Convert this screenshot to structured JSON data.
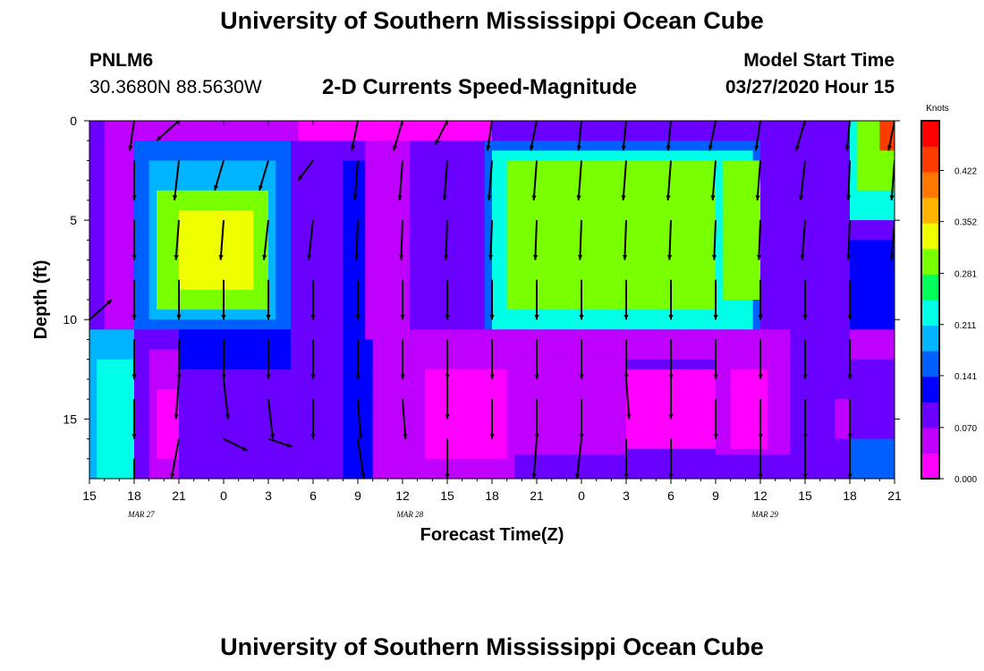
{
  "header": {
    "title_top": "University of Southern Mississippi Ocean Cube",
    "station": "PNLM6",
    "coords": "30.3680N 88.5630W",
    "plot_title": "2-D Currents Speed-Magnitude",
    "model_start_label": "Model Start Time",
    "model_start_value": "03/27/2020 Hour 15"
  },
  "footer": {
    "title_bottom": "University of Southern Mississippi Ocean Cube"
  },
  "chart_data": {
    "type": "heatmap",
    "title": "2-D Currents Speed-Magnitude",
    "xlabel": "Forecast Time(Z)",
    "ylabel": "Depth (ft)",
    "x_tick_labels": [
      "15",
      "18",
      "21",
      "0",
      "3",
      "6",
      "9",
      "12",
      "15",
      "18",
      "21",
      "0",
      "3",
      "6",
      "9",
      "12",
      "15",
      "18",
      "21"
    ],
    "date_labels": [
      {
        "text": "MAR 27",
        "at_hour": 21
      },
      {
        "text": "MAR 28",
        "at_hour": 48
      },
      {
        "text": "MAR 29",
        "at_hour": 93
      }
    ],
    "x_range_hours": [
      0,
      54
    ],
    "y_ticks": [
      0,
      5,
      10,
      15
    ],
    "ylim": [
      0,
      18
    ],
    "colorbar": {
      "unit": "Knots",
      "tick_values": [
        "0.000",
        "0.070",
        "0.141",
        "0.211",
        "0.281",
        "0.352",
        "0.422"
      ],
      "range": [
        0,
        0.49
      ],
      "colors": [
        "#ff00ff",
        "#c000ff",
        "#6a00ff",
        "#0000ff",
        "#0060ff",
        "#00b4ff",
        "#00ffe6",
        "#00ff5a",
        "#78ff00",
        "#f0ff00",
        "#ffb400",
        "#ff7800",
        "#ff3c00",
        "#ff0000"
      ]
    },
    "regions": [
      {
        "t0": 0,
        "t1": 54,
        "d0": 0,
        "d1": 18,
        "v": 0.09
      },
      {
        "t0": 1,
        "t1": 14,
        "d0": 0,
        "d1": 1,
        "v": 0.06
      },
      {
        "t0": 14,
        "t1": 27,
        "d0": 0,
        "d1": 1,
        "v": 0.03
      },
      {
        "t0": 27,
        "t1": 52,
        "d0": 0,
        "d1": 1,
        "v": 0.07
      },
      {
        "t0": 0,
        "t1": 1,
        "d0": 0,
        "d1": 10,
        "v": 0.08
      },
      {
        "t0": 1,
        "t1": 3,
        "d0": 1,
        "d1": 10.5,
        "v": 0.06
      },
      {
        "t0": 3,
        "t1": 13.5,
        "d0": 1,
        "d1": 10.5,
        "v": 0.15
      },
      {
        "t0": 4,
        "t1": 12.5,
        "d0": 2,
        "d1": 10,
        "v": 0.2
      },
      {
        "t0": 4.5,
        "t1": 12,
        "d0": 3.5,
        "d1": 9.5,
        "v": 0.29
      },
      {
        "t0": 6,
        "t1": 11,
        "d0": 4.5,
        "d1": 8.5,
        "v": 0.32
      },
      {
        "t0": 13.5,
        "t1": 17,
        "d0": 1,
        "d1": 18,
        "v": 0.08
      },
      {
        "t0": 17,
        "t1": 18.5,
        "d0": 2,
        "d1": 18,
        "v": 0.12
      },
      {
        "t0": 18.5,
        "t1": 21.5,
        "d0": 1,
        "d1": 18,
        "v": 0.06
      },
      {
        "t0": 21.5,
        "t1": 23.5,
        "d0": 2,
        "d1": 12,
        "v": 0.1
      },
      {
        "t0": 23.5,
        "t1": 26,
        "d0": 1,
        "d1": 11,
        "v": 0.08
      },
      {
        "t0": 26.5,
        "t1": 45,
        "d0": 1,
        "d1": 11,
        "v": 0.14
      },
      {
        "t0": 27,
        "t1": 44.5,
        "d0": 1.5,
        "d1": 10.5,
        "v": 0.21
      },
      {
        "t0": 28,
        "t1": 42,
        "d0": 2,
        "d1": 9.5,
        "v": 0.28
      },
      {
        "t0": 29,
        "t1": 40.5,
        "d0": 3,
        "d1": 8.5,
        "v": 0.31
      },
      {
        "t0": 42.5,
        "t1": 45,
        "d0": 2,
        "d1": 9,
        "v": 0.29
      },
      {
        "t0": 45,
        "t1": 48,
        "d0": 1,
        "d1": 11,
        "v": 0.08
      },
      {
        "t0": 48,
        "t1": 51,
        "d0": 2,
        "d1": 18,
        "v": 0.07
      },
      {
        "t0": 51,
        "t1": 54,
        "d0": 0,
        "d1": 5,
        "v": 0.22
      },
      {
        "t0": 51.5,
        "t1": 54,
        "d0": 0,
        "d1": 3.5,
        "v": 0.3
      },
      {
        "t0": 53,
        "t1": 54,
        "d0": 0,
        "d1": 1.5,
        "v": 0.42
      },
      {
        "t0": 51,
        "t1": 54,
        "d0": 6,
        "d1": 11,
        "v": 0.11
      },
      {
        "t0": 0,
        "t1": 3,
        "d0": 10.5,
        "d1": 18,
        "v": 0.19
      },
      {
        "t0": 0.5,
        "t1": 3,
        "d0": 12,
        "d1": 18,
        "v": 0.23
      },
      {
        "t0": 3,
        "t1": 4,
        "d0": 11,
        "d1": 18,
        "v": 0.07
      },
      {
        "t0": 4,
        "t1": 6,
        "d0": 11.5,
        "d1": 18,
        "v": 0.05
      },
      {
        "t0": 4.5,
        "t1": 6,
        "d0": 13.5,
        "d1": 17,
        "v": 0.01
      },
      {
        "t0": 6,
        "t1": 13.5,
        "d0": 11,
        "d1": 18,
        "v": 0.09
      },
      {
        "t0": 6,
        "t1": 13.5,
        "d0": 10.5,
        "d1": 12.5,
        "v": 0.13
      },
      {
        "t0": 17,
        "t1": 19,
        "d0": 11,
        "d1": 18,
        "v": 0.12
      },
      {
        "t0": 21.5,
        "t1": 28.5,
        "d0": 10.5,
        "d1": 18,
        "v": 0.05
      },
      {
        "t0": 22.5,
        "t1": 28,
        "d0": 12.5,
        "d1": 17,
        "v": 0.02
      },
      {
        "t0": 28.5,
        "t1": 54,
        "d0": 10.5,
        "d1": 12,
        "v": 0.06
      },
      {
        "t0": 28.5,
        "t1": 36,
        "d0": 12,
        "d1": 18,
        "v": 0.06
      },
      {
        "t0": 36,
        "t1": 42,
        "d0": 12.5,
        "d1": 16.5,
        "v": 0.02
      },
      {
        "t0": 42,
        "t1": 47,
        "d0": 11.5,
        "d1": 18,
        "v": 0.05
      },
      {
        "t0": 43,
        "t1": 45.5,
        "d0": 12.5,
        "d1": 16.5,
        "v": 0.01
      },
      {
        "t0": 47,
        "t1": 48.5,
        "d0": 10.5,
        "d1": 18,
        "v": 0.07
      },
      {
        "t0": 48,
        "t1": 51,
        "d0": 10,
        "d1": 18,
        "v": 0.1
      },
      {
        "t0": 50,
        "t1": 51,
        "d0": 14,
        "d1": 16,
        "v": 0.06
      },
      {
        "t0": 28.5,
        "t1": 51,
        "d0": 16.8,
        "d1": 18,
        "v": 0.1
      },
      {
        "t0": 51,
        "t1": 54,
        "d0": 16,
        "d1": 18,
        "v": 0.14
      }
    ],
    "arrows": [
      {
        "t": 0,
        "d": 10,
        "dt": 1.5,
        "dd": -1
      },
      {
        "t": 3,
        "d": 0,
        "dt": -0.3,
        "dd": 1.5
      },
      {
        "t": 3,
        "d": 2,
        "dt": 0,
        "dd": 2
      },
      {
        "t": 3,
        "d": 5,
        "dt": 0,
        "dd": 2
      },
      {
        "t": 3,
        "d": 8,
        "dt": 0,
        "dd": 2
      },
      {
        "t": 3,
        "d": 11,
        "dt": 0,
        "dd": 2
      },
      {
        "t": 3,
        "d": 14,
        "dt": 0,
        "dd": 2
      },
      {
        "t": 3,
        "d": 17,
        "dt": 0,
        "dd": 2
      },
      {
        "t": 6,
        "d": 0,
        "dt": -1.5,
        "dd": 1
      },
      {
        "t": 6,
        "d": 2,
        "dt": -0.3,
        "dd": 2
      },
      {
        "t": 6,
        "d": 5,
        "dt": -0.2,
        "dd": 2
      },
      {
        "t": 6,
        "d": 8,
        "dt": 0,
        "dd": 2
      },
      {
        "t": 6,
        "d": 11,
        "dt": 0,
        "dd": 2
      },
      {
        "t": 6,
        "d": 13,
        "dt": -0.2,
        "dd": 2
      },
      {
        "t": 6,
        "d": 16,
        "dt": -0.5,
        "dd": 2
      },
      {
        "t": 9,
        "d": 2,
        "dt": -0.6,
        "dd": 1.5
      },
      {
        "t": 9,
        "d": 5,
        "dt": -0.2,
        "dd": 2
      },
      {
        "t": 9,
        "d": 8,
        "dt": 0,
        "dd": 2
      },
      {
        "t": 9,
        "d": 11,
        "dt": 0,
        "dd": 2
      },
      {
        "t": 9,
        "d": 13,
        "dt": 0.3,
        "dd": 2
      },
      {
        "t": 9,
        "d": 16,
        "dt": 1.6,
        "dd": 0.6
      },
      {
        "t": 12,
        "d": 2,
        "dt": -0.6,
        "dd": 1.5
      },
      {
        "t": 12,
        "d": 5,
        "dt": -0.3,
        "dd": 2
      },
      {
        "t": 12,
        "d": 8,
        "dt": 0,
        "dd": 2
      },
      {
        "t": 12,
        "d": 11,
        "dt": 0,
        "dd": 2
      },
      {
        "t": 12,
        "d": 14,
        "dt": 0.3,
        "dd": 2
      },
      {
        "t": 12,
        "d": 16,
        "dt": 1.6,
        "dd": 0.4
      },
      {
        "t": 15,
        "d": 2,
        "dt": -1,
        "dd": 1
      },
      {
        "t": 15,
        "d": 5,
        "dt": -0.3,
        "dd": 2
      },
      {
        "t": 15,
        "d": 8,
        "dt": 0,
        "dd": 2
      },
      {
        "t": 15,
        "d": 11,
        "dt": 0,
        "dd": 2
      },
      {
        "t": 15,
        "d": 14,
        "dt": 0,
        "dd": 2
      },
      {
        "t": 18,
        "d": 0,
        "dt": -0.4,
        "dd": 1.5
      },
      {
        "t": 18,
        "d": 2,
        "dt": -0.2,
        "dd": 2
      },
      {
        "t": 18,
        "d": 5,
        "dt": -0.1,
        "dd": 2
      },
      {
        "t": 18,
        "d": 8,
        "dt": 0,
        "dd": 2
      },
      {
        "t": 18,
        "d": 11,
        "dt": 0,
        "dd": 2
      },
      {
        "t": 18,
        "d": 14,
        "dt": 0.2,
        "dd": 2
      },
      {
        "t": 18,
        "d": 16,
        "dt": 0.4,
        "dd": 2
      },
      {
        "t": 21,
        "d": 0,
        "dt": -0.6,
        "dd": 1.5
      },
      {
        "t": 21,
        "d": 2,
        "dt": -0.2,
        "dd": 2
      },
      {
        "t": 21,
        "d": 5,
        "dt": -0.1,
        "dd": 2
      },
      {
        "t": 21,
        "d": 8,
        "dt": 0,
        "dd": 2
      },
      {
        "t": 21,
        "d": 11,
        "dt": 0,
        "dd": 2
      },
      {
        "t": 21,
        "d": 14,
        "dt": 0.2,
        "dd": 2
      },
      {
        "t": 24,
        "d": 0,
        "dt": -0.8,
        "dd": 1.2
      },
      {
        "t": 24,
        "d": 2,
        "dt": -0.2,
        "dd": 2
      },
      {
        "t": 24,
        "d": 5,
        "dt": -0.1,
        "dd": 2
      },
      {
        "t": 24,
        "d": 8,
        "dt": 0,
        "dd": 2
      },
      {
        "t": 24,
        "d": 11,
        "dt": 0,
        "dd": 2
      },
      {
        "t": 24,
        "d": 13,
        "dt": 0,
        "dd": 2
      },
      {
        "t": 24,
        "d": 16,
        "dt": 0,
        "dd": 2
      },
      {
        "t": 27,
        "d": 0,
        "dt": -0.3,
        "dd": 1.5
      },
      {
        "t": 27,
        "d": 2,
        "dt": -0.2,
        "dd": 2
      },
      {
        "t": 27,
        "d": 5,
        "dt": -0.1,
        "dd": 2
      },
      {
        "t": 27,
        "d": 8,
        "dt": 0,
        "dd": 2
      },
      {
        "t": 27,
        "d": 11,
        "dt": 0,
        "dd": 2
      },
      {
        "t": 27,
        "d": 14,
        "dt": 0,
        "dd": 2
      },
      {
        "t": 30,
        "d": 0,
        "dt": -0.4,
        "dd": 1.5
      },
      {
        "t": 30,
        "d": 2,
        "dt": -0.2,
        "dd": 2
      },
      {
        "t": 30,
        "d": 5,
        "dt": -0.1,
        "dd": 2
      },
      {
        "t": 30,
        "d": 8,
        "dt": 0,
        "dd": 2
      },
      {
        "t": 30,
        "d": 11,
        "dt": 0,
        "dd": 2
      },
      {
        "t": 30,
        "d": 14,
        "dt": 0,
        "dd": 2
      },
      {
        "t": 30,
        "d": 16,
        "dt": -0.2,
        "dd": 2
      },
      {
        "t": 33,
        "d": 0,
        "dt": -0.2,
        "dd": 1.5
      },
      {
        "t": 33,
        "d": 2,
        "dt": -0.2,
        "dd": 2
      },
      {
        "t": 33,
        "d": 5,
        "dt": -0.1,
        "dd": 2
      },
      {
        "t": 33,
        "d": 8,
        "dt": 0,
        "dd": 2
      },
      {
        "t": 33,
        "d": 11,
        "dt": 0,
        "dd": 2
      },
      {
        "t": 33,
        "d": 14,
        "dt": 0,
        "dd": 2
      },
      {
        "t": 33,
        "d": 16,
        "dt": -0.3,
        "dd": 2
      },
      {
        "t": 36,
        "d": 0,
        "dt": -0.2,
        "dd": 1.5
      },
      {
        "t": 36,
        "d": 2,
        "dt": -0.2,
        "dd": 2
      },
      {
        "t": 36,
        "d": 5,
        "dt": -0.1,
        "dd": 2
      },
      {
        "t": 36,
        "d": 8,
        "dt": 0,
        "dd": 2
      },
      {
        "t": 36,
        "d": 11,
        "dt": 0,
        "dd": 2
      },
      {
        "t": 36,
        "d": 13,
        "dt": 0.2,
        "dd": 2
      },
      {
        "t": 36,
        "d": 16,
        "dt": 0,
        "dd": 2
      },
      {
        "t": 39,
        "d": 0,
        "dt": -0.2,
        "dd": 1.5
      },
      {
        "t": 39,
        "d": 2,
        "dt": -0.2,
        "dd": 2
      },
      {
        "t": 39,
        "d": 5,
        "dt": -0.1,
        "dd": 2
      },
      {
        "t": 39,
        "d": 8,
        "dt": 0,
        "dd": 2
      },
      {
        "t": 39,
        "d": 11,
        "dt": 0,
        "dd": 2
      },
      {
        "t": 39,
        "d": 13,
        "dt": 0,
        "dd": 2
      },
      {
        "t": 39,
        "d": 16,
        "dt": 0,
        "dd": 2
      },
      {
        "t": 42,
        "d": 0,
        "dt": -0.4,
        "dd": 1.5
      },
      {
        "t": 42,
        "d": 2,
        "dt": -0.2,
        "dd": 2
      },
      {
        "t": 42,
        "d": 5,
        "dt": -0.1,
        "dd": 2
      },
      {
        "t": 42,
        "d": 8,
        "dt": 0,
        "dd": 2
      },
      {
        "t": 42,
        "d": 11,
        "dt": 0,
        "dd": 2
      },
      {
        "t": 42,
        "d": 14,
        "dt": 0,
        "dd": 2
      },
      {
        "t": 45,
        "d": 0,
        "dt": -0.3,
        "dd": 1.5
      },
      {
        "t": 45,
        "d": 2,
        "dt": -0.2,
        "dd": 2
      },
      {
        "t": 45,
        "d": 5,
        "dt": -0.1,
        "dd": 2
      },
      {
        "t": 45,
        "d": 8,
        "dt": 0,
        "dd": 2
      },
      {
        "t": 45,
        "d": 11,
        "dt": 0,
        "dd": 2
      },
      {
        "t": 45,
        "d": 14,
        "dt": 0,
        "dd": 2
      },
      {
        "t": 45,
        "d": 16,
        "dt": 0,
        "dd": 2
      },
      {
        "t": 48,
        "d": 0,
        "dt": -0.6,
        "dd": 1.5
      },
      {
        "t": 48,
        "d": 2,
        "dt": -0.3,
        "dd": 2
      },
      {
        "t": 48,
        "d": 5,
        "dt": -0.2,
        "dd": 2
      },
      {
        "t": 48,
        "d": 8,
        "dt": 0,
        "dd": 2
      },
      {
        "t": 48,
        "d": 11,
        "dt": 0,
        "dd": 2
      },
      {
        "t": 48,
        "d": 14,
        "dt": 0,
        "dd": 2
      },
      {
        "t": 48,
        "d": 16,
        "dt": 0,
        "dd": 2
      },
      {
        "t": 51,
        "d": 0,
        "dt": -0.2,
        "dd": 1.5
      },
      {
        "t": 51,
        "d": 2,
        "dt": -0.1,
        "dd": 2
      },
      {
        "t": 51,
        "d": 5,
        "dt": -0.1,
        "dd": 2
      },
      {
        "t": 51,
        "d": 8,
        "dt": 0,
        "dd": 2
      },
      {
        "t": 51,
        "d": 11,
        "dt": 0,
        "dd": 2
      },
      {
        "t": 51,
        "d": 14,
        "dt": 0,
        "dd": 2
      },
      {
        "t": 51,
        "d": 16,
        "dt": 0,
        "dd": 2
      },
      {
        "t": 54,
        "d": 0,
        "dt": -0.4,
        "dd": 1.5
      },
      {
        "t": 54,
        "d": 2,
        "dt": -0.2,
        "dd": 2
      },
      {
        "t": 54,
        "d": 5,
        "dt": -0.2,
        "dd": 2
      }
    ]
  }
}
